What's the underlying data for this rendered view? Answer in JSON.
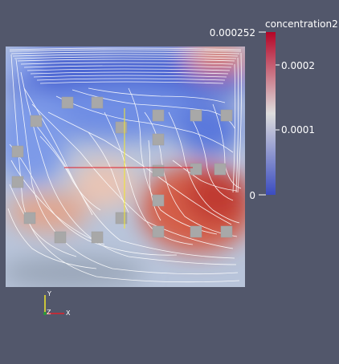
{
  "colorbar": {
    "title": "concentration2",
    "max_label": "0.000252",
    "ticks": [
      "0.0002",
      "0.0001",
      "0"
    ],
    "colors": {
      "low": "#3b4cc0",
      "mid": "#dddddd",
      "high": "#b40426"
    }
  },
  "axes": {
    "y": "Y",
    "z": "Z",
    "x": "X"
  },
  "colors": {
    "background": "#52576b",
    "streamline": "#ffffff",
    "obstacle": "#a8a8a8"
  }
}
